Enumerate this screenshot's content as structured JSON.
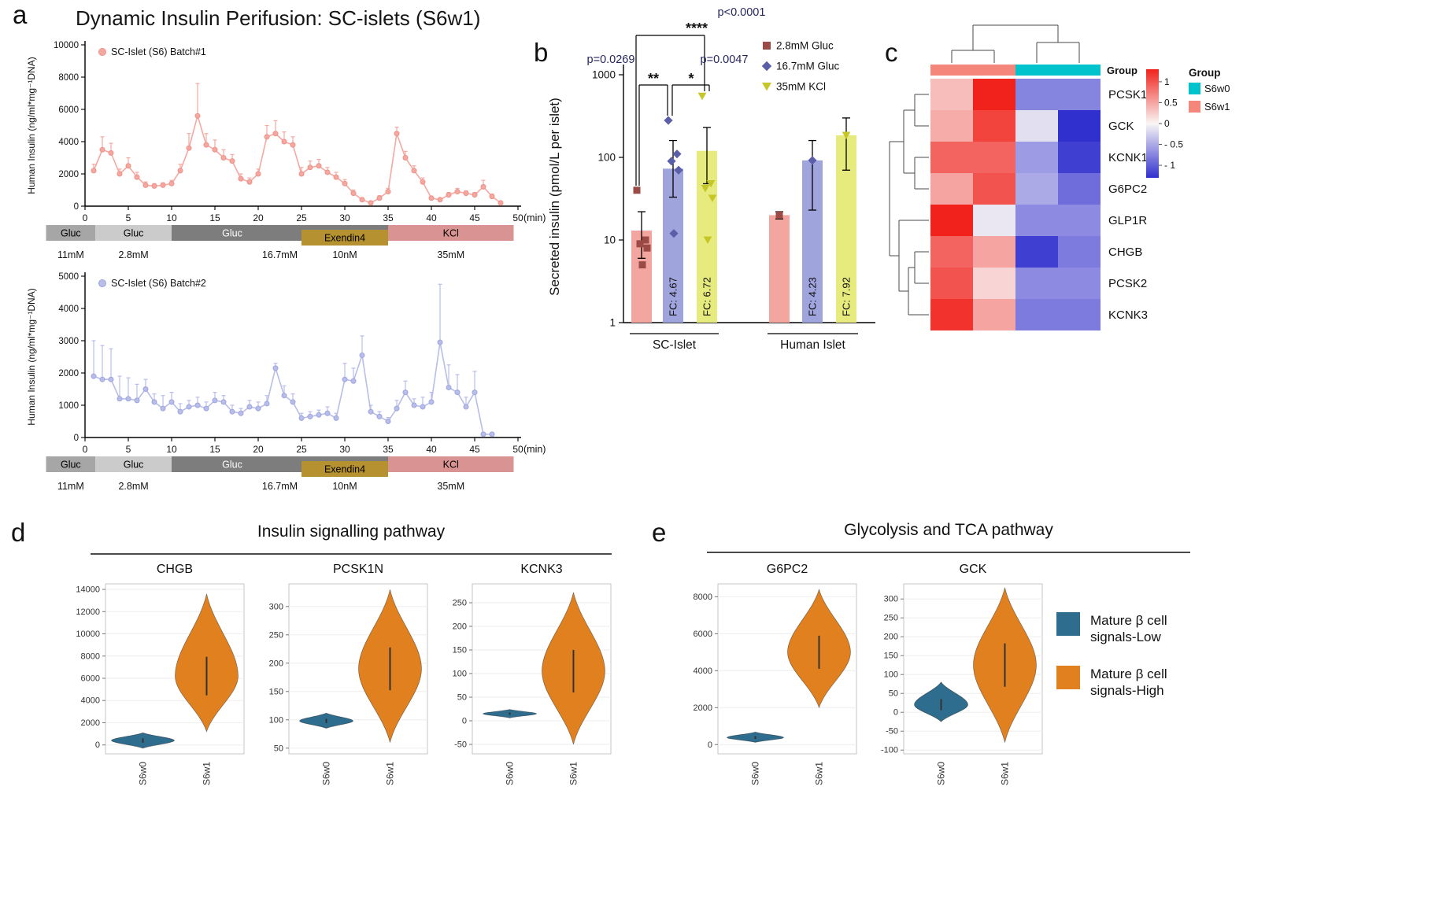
{
  "panel_a": {
    "label": "a",
    "title": "Dynamic Insulin Perifusion: SC-islets (S6w1)",
    "xunit": "(min)",
    "treatment_segments": [
      {
        "label": "Gluc",
        "dose": "11mM",
        "color": "#a6a6a6",
        "text_color": "#000000",
        "t0": -4.5,
        "t1": 1.2,
        "row": 0
      },
      {
        "label": "Gluc",
        "dose": "2.8mM",
        "color": "#cbcbcb",
        "text_color": "#000000",
        "t0": 1.2,
        "t1": 10,
        "row": 0
      },
      {
        "label": "Gluc",
        "dose": "16.7mM",
        "color": "#7d7d7d",
        "text_color": "#ffffff",
        "t0": 10,
        "t1": 35,
        "row": 0,
        "label_center_min": 17
      },
      {
        "label": "Exendin4",
        "dose": "10nM",
        "color": "#b5912f",
        "text_color": "#000000",
        "t0": 25,
        "t1": 35,
        "row": 1
      },
      {
        "label": "KCl",
        "dose": "35mM",
        "color": "#d89392",
        "text_color": "#000000",
        "t0": 35,
        "t1": 49.5,
        "row": 0
      }
    ]
  },
  "panel_b": {
    "label": "b"
  },
  "panel_c": {
    "label": "c"
  },
  "panel_d": {
    "label": "d",
    "title": "Insulin signalling pathway"
  },
  "panel_e": {
    "label": "e",
    "title": "Glycolysis and TCA pathway",
    "legend": [
      {
        "line1": "Mature β cell",
        "line2": "signals-Low",
        "color": "#2e6d8e"
      },
      {
        "line1": "Mature β cell",
        "line2": "signals-High",
        "color": "#e0801f"
      }
    ]
  },
  "violin_colors": {
    "S6w0": "#2e6d8e",
    "S6w1": "#e0801f"
  },
  "chart_data": [
    {
      "id": "perifusion_batch1",
      "type": "line",
      "legend": "SC-Islet (S6) Batch#1",
      "color": "#f5a8a0",
      "marker_stroke": "#ee9189",
      "ylabel": "Human Insulin (ng/ml*mg⁻¹DNA)",
      "ylim": [
        0,
        10000
      ],
      "ytick_step": 2000,
      "xlim": [
        0,
        50
      ],
      "xtick_step": 5,
      "xunit": "(min)",
      "x": [
        1,
        2,
        3,
        4,
        5,
        6,
        7,
        8,
        9,
        10,
        11,
        12,
        13,
        14,
        15,
        16,
        17,
        18,
        19,
        20,
        21,
        22,
        23,
        24,
        25,
        26,
        27,
        28,
        29,
        30,
        31,
        32,
        33,
        34,
        35,
        36,
        37,
        38,
        39,
        40,
        41,
        42,
        43,
        44,
        45,
        46,
        47,
        48
      ],
      "y": [
        2200,
        3500,
        3300,
        2000,
        2500,
        1800,
        1300,
        1250,
        1300,
        1400,
        2200,
        3600,
        5600,
        3800,
        3500,
        3000,
        2800,
        1700,
        1500,
        2000,
        4300,
        4500,
        4000,
        3800,
        2000,
        2400,
        2500,
        2100,
        1800,
        1400,
        800,
        400,
        200,
        500,
        900,
        4500,
        3000,
        2200,
        1500,
        500,
        400,
        700,
        900,
        800,
        700,
        1200,
        600,
        200
      ],
      "err": [
        400,
        800,
        600,
        300,
        500,
        300,
        200,
        150,
        150,
        200,
        400,
        900,
        2000,
        700,
        600,
        500,
        400,
        300,
        250,
        300,
        700,
        800,
        600,
        500,
        400,
        400,
        400,
        300,
        300,
        250,
        200,
        100,
        80,
        150,
        200,
        400,
        400,
        300,
        250,
        100,
        100,
        150,
        200,
        150,
        150,
        400,
        150,
        80
      ]
    },
    {
      "id": "perifusion_batch2",
      "type": "line",
      "legend": "SC-Islet (S6) Batch#2",
      "color": "#b8bde9",
      "marker_stroke": "#9ea5dd",
      "ylabel": "Human Insulin (ng/ml*mg⁻¹DNA)",
      "ylim": [
        0,
        5000
      ],
      "ytick_step": 1000,
      "xlim": [
        0,
        50
      ],
      "xtick_step": 5,
      "xunit": "(min)",
      "x": [
        1,
        2,
        3,
        4,
        5,
        6,
        7,
        8,
        9,
        10,
        11,
        12,
        13,
        14,
        15,
        16,
        17,
        18,
        19,
        20,
        21,
        22,
        23,
        24,
        25,
        26,
        27,
        28,
        29,
        30,
        31,
        32,
        33,
        34,
        35,
        36,
        37,
        38,
        39,
        40,
        41,
        42,
        43,
        44,
        45,
        46,
        47
      ],
      "y": [
        1900,
        1800,
        1800,
        1200,
        1200,
        1150,
        1500,
        1100,
        900,
        1100,
        800,
        950,
        1000,
        900,
        1150,
        1100,
        800,
        750,
        950,
        900,
        1050,
        2150,
        1300,
        1100,
        600,
        650,
        700,
        750,
        600,
        1800,
        1750,
        2550,
        800,
        650,
        500,
        900,
        1400,
        1000,
        950,
        1100,
        2950,
        1550,
        1400,
        950,
        1400,
        100,
        100
      ],
      "err": [
        1100,
        1050,
        950,
        700,
        650,
        500,
        300,
        250,
        400,
        300,
        250,
        200,
        250,
        200,
        250,
        200,
        200,
        150,
        200,
        200,
        250,
        150,
        300,
        250,
        150,
        150,
        150,
        200,
        150,
        500,
        400,
        600,
        200,
        150,
        120,
        250,
        350,
        200,
        300,
        300,
        1800,
        700,
        550,
        300,
        650,
        50,
        50
      ]
    },
    {
      "id": "secretion_bars",
      "type": "bar",
      "yscale": "log",
      "ylabel": "Secreted insulin (pmol/L per islet)",
      "ylim": [
        1,
        1000
      ],
      "yticks": [
        1,
        10,
        100,
        1000
      ],
      "conditions": [
        {
          "label": "2.8mM Gluc",
          "bar_color": "#f2a69f",
          "marker": "square",
          "marker_color": "#9c4a46"
        },
        {
          "label": "16.7mM Gluc",
          "bar_color": "#a0a4dc",
          "marker": "diamond",
          "marker_color": "#5a5fa8"
        },
        {
          "label": "35mM KCl",
          "bar_color": "#e7ea7d",
          "marker": "triangle-down",
          "marker_color": "#c5c728"
        }
      ],
      "groups": [
        {
          "label": "SC-Islet",
          "bars": [
            {
              "mean": 13,
              "err": [
                6,
                22
              ],
              "points": [
                40,
                10,
                9,
                8,
                5
              ]
            },
            {
              "mean": 73,
              "err": [
                33,
                160
              ],
              "points": [
                280,
                110,
                90,
                70,
                12
              ],
              "fc": "FC: 4.67"
            },
            {
              "mean": 120,
              "err": [
                48,
                230
              ],
              "points": [
                550,
                48,
                42,
                32,
                10
              ],
              "fc": "FC: 6.72"
            }
          ]
        },
        {
          "label": "Human Islet",
          "bars": [
            {
              "mean": 20,
              "err": [
                18,
                22
              ],
              "points": [
                20
              ]
            },
            {
              "mean": 92,
              "err": [
                23,
                160
              ],
              "points": [
                92
              ],
              "fc": "FC: 4.23"
            },
            {
              "mean": 185,
              "err": [
                70,
                300
              ],
              "points": [
                185
              ],
              "fc": "FC: 7.92"
            }
          ]
        }
      ],
      "significance": [
        {
          "p": "p=0.0269",
          "stars": "**"
        },
        {
          "p": "p<0.0001",
          "stars": "****"
        },
        {
          "p": "p=0.0047",
          "stars": "*"
        }
      ]
    },
    {
      "id": "expression_heatmap",
      "type": "heatmap",
      "genes": [
        "PCSK1",
        "GCK",
        "KCNK1",
        "G6PC2",
        "GLP1R",
        "CHGB",
        "PCSK2",
        "KCNK3"
      ],
      "columns": [
        "S6w1",
        "S6w1",
        "S6w0",
        "S6w0"
      ],
      "values": [
        [
          0.35,
          1.3,
          -0.75,
          -0.75
        ],
        [
          0.45,
          1.1,
          -0.15,
          -1.3
        ],
        [
          0.9,
          0.9,
          -0.6,
          -1.2
        ],
        [
          0.5,
          1.0,
          -0.5,
          -0.9
        ],
        [
          1.3,
          -0.1,
          -0.7,
          -0.7
        ],
        [
          0.9,
          0.5,
          -1.2,
          -0.8
        ],
        [
          1.0,
          0.2,
          -0.7,
          -0.7
        ],
        [
          1.2,
          0.5,
          -0.8,
          -0.8
        ]
      ],
      "annotation_label": "Group",
      "group_colors": {
        "S6w0": "#00c3cb",
        "S6w1": "#f4867c"
      },
      "colorbar_ticks": [
        {
          "v": 1,
          "label": "1"
        },
        {
          "v": 0.5,
          "label": "0.5"
        },
        {
          "v": 0,
          "label": "0"
        },
        {
          "v": -0.5,
          "label": "- 0.5"
        },
        {
          "v": -1,
          "label": "- 1"
        }
      ],
      "legend_title": "Group",
      "legend": [
        {
          "label": "S6w0",
          "color": "#00c3cb"
        },
        {
          "label": "S6w1",
          "color": "#f4867c"
        }
      ]
    },
    {
      "id": "violins_insulin",
      "type": "violin",
      "panel_title": "Insulin signalling pathway",
      "x_categories": [
        "S6w0",
        "S6w1"
      ],
      "plots": [
        {
          "gene": "CHGB",
          "ylim": [
            -800,
            14500
          ],
          "yticks": [
            0,
            2000,
            4000,
            6000,
            8000,
            10000,
            12000,
            14000
          ],
          "violins": [
            {
              "group": "S6w0",
              "min": -300,
              "max": 1100,
              "median": 400,
              "hw": 40
            },
            {
              "group": "S6w1",
              "min": 1200,
              "max": 13600,
              "median": 6200,
              "hw": 40
            }
          ]
        },
        {
          "gene": "PCSK1N",
          "ylim": [
            40,
            340
          ],
          "yticks": [
            50,
            100,
            150,
            200,
            250,
            300
          ],
          "violins": [
            {
              "group": "S6w0",
              "min": 85,
              "max": 112,
              "median": 98,
              "hw": 34
            },
            {
              "group": "S6w1",
              "min": 60,
              "max": 330,
              "median": 190,
              "hw": 40
            }
          ]
        },
        {
          "gene": "KCNK3",
          "ylim": [
            -70,
            290
          ],
          "yticks": [
            -50,
            0,
            50,
            100,
            150,
            200,
            250
          ],
          "violins": [
            {
              "group": "S6w0",
              "min": 6,
              "max": 24,
              "median": 15,
              "hw": 34
            },
            {
              "group": "S6w1",
              "min": -50,
              "max": 272,
              "median": 105,
              "hw": 40
            }
          ]
        }
      ]
    },
    {
      "id": "violins_glycolysis",
      "type": "violin",
      "panel_title": "Glycolysis and TCA pathway",
      "x_categories": [
        "S6w0",
        "S6w1"
      ],
      "plots": [
        {
          "gene": "G6PC2",
          "ylim": [
            -500,
            8700
          ],
          "yticks": [
            0,
            2000,
            4000,
            6000,
            8000
          ],
          "violins": [
            {
              "group": "S6w0",
              "min": 120,
              "max": 680,
              "median": 380,
              "hw": 36
            },
            {
              "group": "S6w1",
              "min": 2000,
              "max": 8400,
              "median": 5000,
              "hw": 40
            }
          ]
        },
        {
          "gene": "GCK",
          "ylim": [
            -110,
            340
          ],
          "yticks": [
            -100,
            -50,
            0,
            50,
            100,
            150,
            200,
            250,
            300
          ],
          "violins": [
            {
              "group": "S6w0",
              "min": -25,
              "max": 80,
              "median": 20,
              "hw": 34
            },
            {
              "group": "S6w1",
              "min": -80,
              "max": 330,
              "median": 125,
              "hw": 40
            }
          ]
        }
      ]
    }
  ]
}
